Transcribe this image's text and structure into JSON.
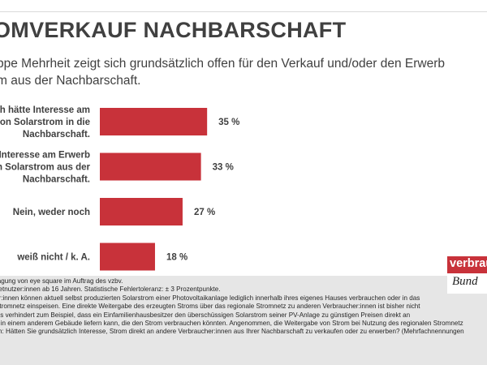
{
  "title": "OMVERKAUF NACHBARSCHAFT",
  "subtitle": [
    "ppe Mehrheit zeigt sich grundsätzlich offen für den Verkauf und/oder den Erwerb",
    "m aus der Nachbarschaft."
  ],
  "colors": {
    "bar": "#c8323a",
    "text": "#404040",
    "footer_bg": "#e6e6e6"
  },
  "chart_data": {
    "type": "bar",
    "orientation": "horizontal",
    "categories": [
      [
        "h hätte Interesse am",
        "on Solarstrom in die",
        "Nachbarschaft."
      ],
      [
        "Interesse am Erwerb",
        "n Solarstrom aus der",
        "Nachbarschaft."
      ],
      [
        "Nein, weder noch"
      ],
      [
        "weiß nicht / k. A."
      ]
    ],
    "values": [
      35,
      33,
      27,
      18
    ],
    "value_labels": [
      "35 %",
      "33 %",
      "27 %",
      "18 %"
    ],
    "unit": "%",
    "xlim": [
      0,
      100
    ],
    "grid": false,
    "legend": "none"
  },
  "footer": {
    "lines": [
      "ragung von eye square im Auftrag des vzbv.",
      "netnutzer:innen ab 16 Jahren. Statistische Fehlertoleranz: ± 3 Prozentpunkte.",
      "er:innen können aktuell selbst produzierten Solarstrom einer Photovoltaikanlage lediglich innerhalb ihres eigenes Hauses verbrauchen oder in das",
      "Stromnetz einspeisen. Eine direkte Weitergabe des erzeugten Stroms über das regionale Stromnetz zu anderen Verbraucher:innen ist bisher nicht",
      "ies verhindert zum Beispiel, dass ein Einfamilienhausbesitzer den überschüssigen Solarstrom seiner PV-Anlage zu günstigen Preisen direkt an",
      "n in einem anderem Gebäude liefern kann, die den Strom verbrauchen könnten. Angenommen, die Weitergabe von Strom bei Nutzung des regionalen Stromnetz",
      "ch: Hätten Sie grundsätzlich Interesse, Strom direkt an andere Verbraucher:innen aus Ihrer Nachbarschaft zu verkaufen oder zu erwerben? (Mehrfachnennungen"
    ]
  },
  "logo": {
    "word": "verbrau",
    "script": "Bund"
  }
}
